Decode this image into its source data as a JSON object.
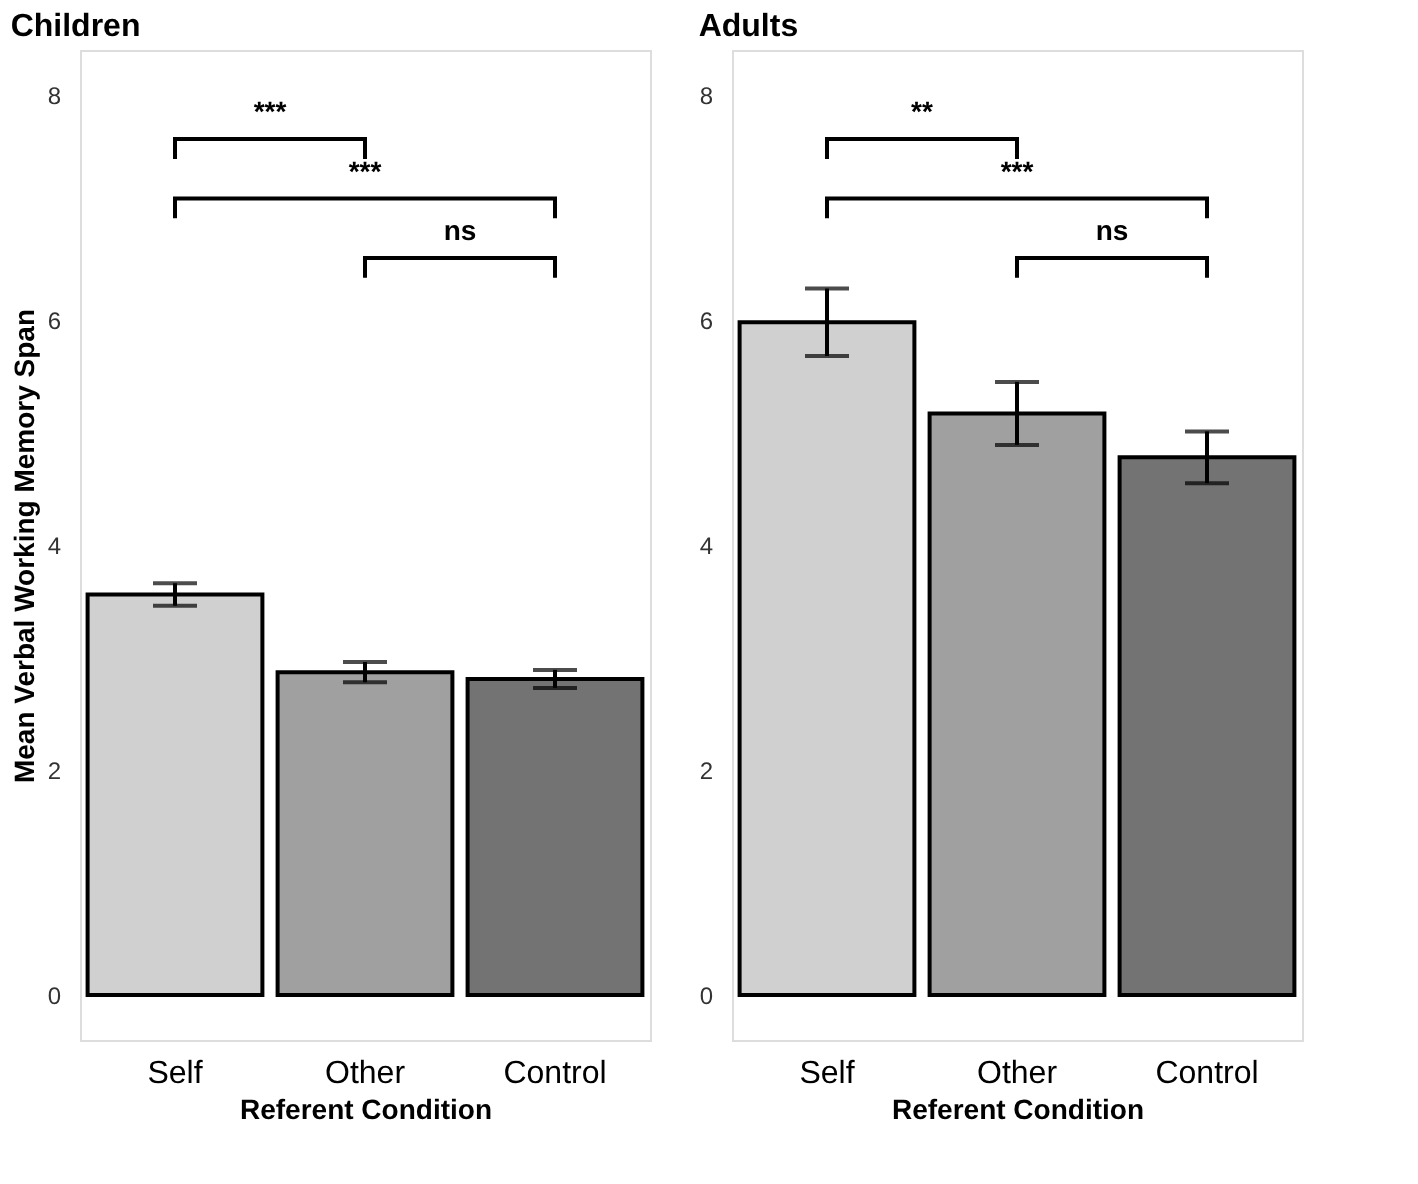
{
  "chart_data": [
    {
      "type": "bar",
      "title": "Children",
      "xlabel": "Referent Condition",
      "ylabel": "Mean Verbal Working Memory Span",
      "categories": [
        "Self",
        "Other",
        "Control"
      ],
      "values": [
        3.56,
        2.87,
        2.81
      ],
      "errors": [
        0.1,
        0.09,
        0.08
      ],
      "colors": [
        "#d0d0d0",
        "#a0a0a0",
        "#737373"
      ],
      "ylim": [
        -0.4,
        8.4
      ],
      "yticks": [
        0,
        2,
        4,
        6,
        8
      ],
      "grid": false,
      "annotations": [
        "***",
        "***",
        "ns"
      ]
    },
    {
      "type": "bar",
      "title": "Adults",
      "xlabel": "Referent Condition",
      "categories": [
        "Self",
        "Other",
        "Control"
      ],
      "values": [
        5.98,
        5.17,
        4.78
      ],
      "errors": [
        0.3,
        0.28,
        0.23
      ],
      "colors": [
        "#d0d0d0",
        "#a0a0a0",
        "#737373"
      ],
      "ylim": [
        -0.4,
        8.4
      ],
      "yticks": [
        0,
        2,
        4,
        6,
        8
      ],
      "grid": false,
      "annotations": [
        "**",
        "***",
        "ns"
      ]
    }
  ]
}
